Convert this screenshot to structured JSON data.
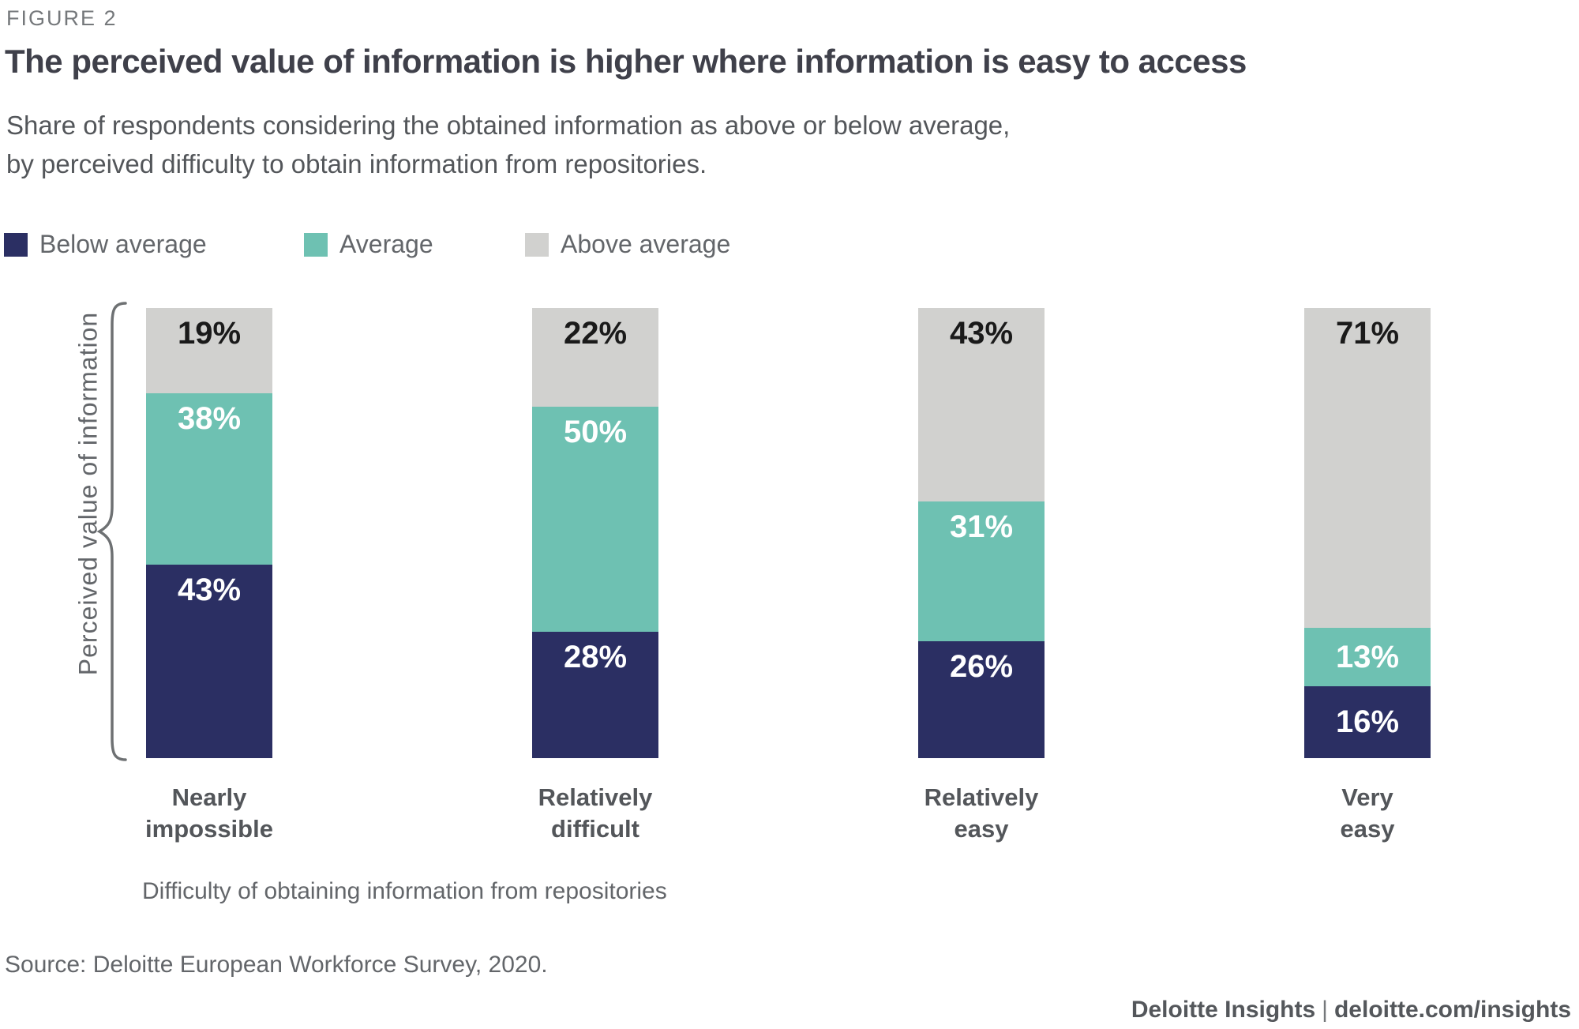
{
  "figure_label": "FIGURE 2",
  "title": "The perceived value of information is higher where information is easy to access",
  "subtitle_lines": [
    "Share of respondents considering the obtained information as above or below average,",
    "by perceived difficulty to obtain information from repositories."
  ],
  "legend": [
    {
      "label": "Below average",
      "color": "#2b2f63"
    },
    {
      "label": "Average",
      "color": "#6ec1b2"
    },
    {
      "label": "Above average",
      "color": "#d1d1cf"
    }
  ],
  "y_axis_label": "Perceived value of information",
  "x_axis_title": "Difficulty of obtaining information from repositories",
  "source": "Source: Deloitte European Workforce Survey, 2020.",
  "footer": {
    "brand": "Deloitte Insights",
    "separator": "|",
    "url": "deloitte.com/insights"
  },
  "chart_data": {
    "type": "bar",
    "stacked": true,
    "orientation": "vertical",
    "categories": [
      "Nearly impossible",
      "Relatively difficult",
      "Relatively easy",
      "Very easy"
    ],
    "series": [
      {
        "name": "Below average",
        "color": "#2b2f63",
        "label_color": "#ffffff",
        "values": [
          43,
          28,
          26,
          16
        ]
      },
      {
        "name": "Average",
        "color": "#6ec1b2",
        "label_color": "#ffffff",
        "values": [
          38,
          50,
          31,
          13
        ]
      },
      {
        "name": "Above average",
        "color": "#d1d1cf",
        "label_color": "#1a1a1a",
        "values": [
          19,
          22,
          43,
          71
        ]
      }
    ],
    "value_suffix": "%",
    "ylim": [
      0,
      100
    ],
    "grid": false,
    "legend_position": "top",
    "xlabel": "Difficulty of obtaining information from repositories",
    "ylabel": "Perceived value of information"
  }
}
